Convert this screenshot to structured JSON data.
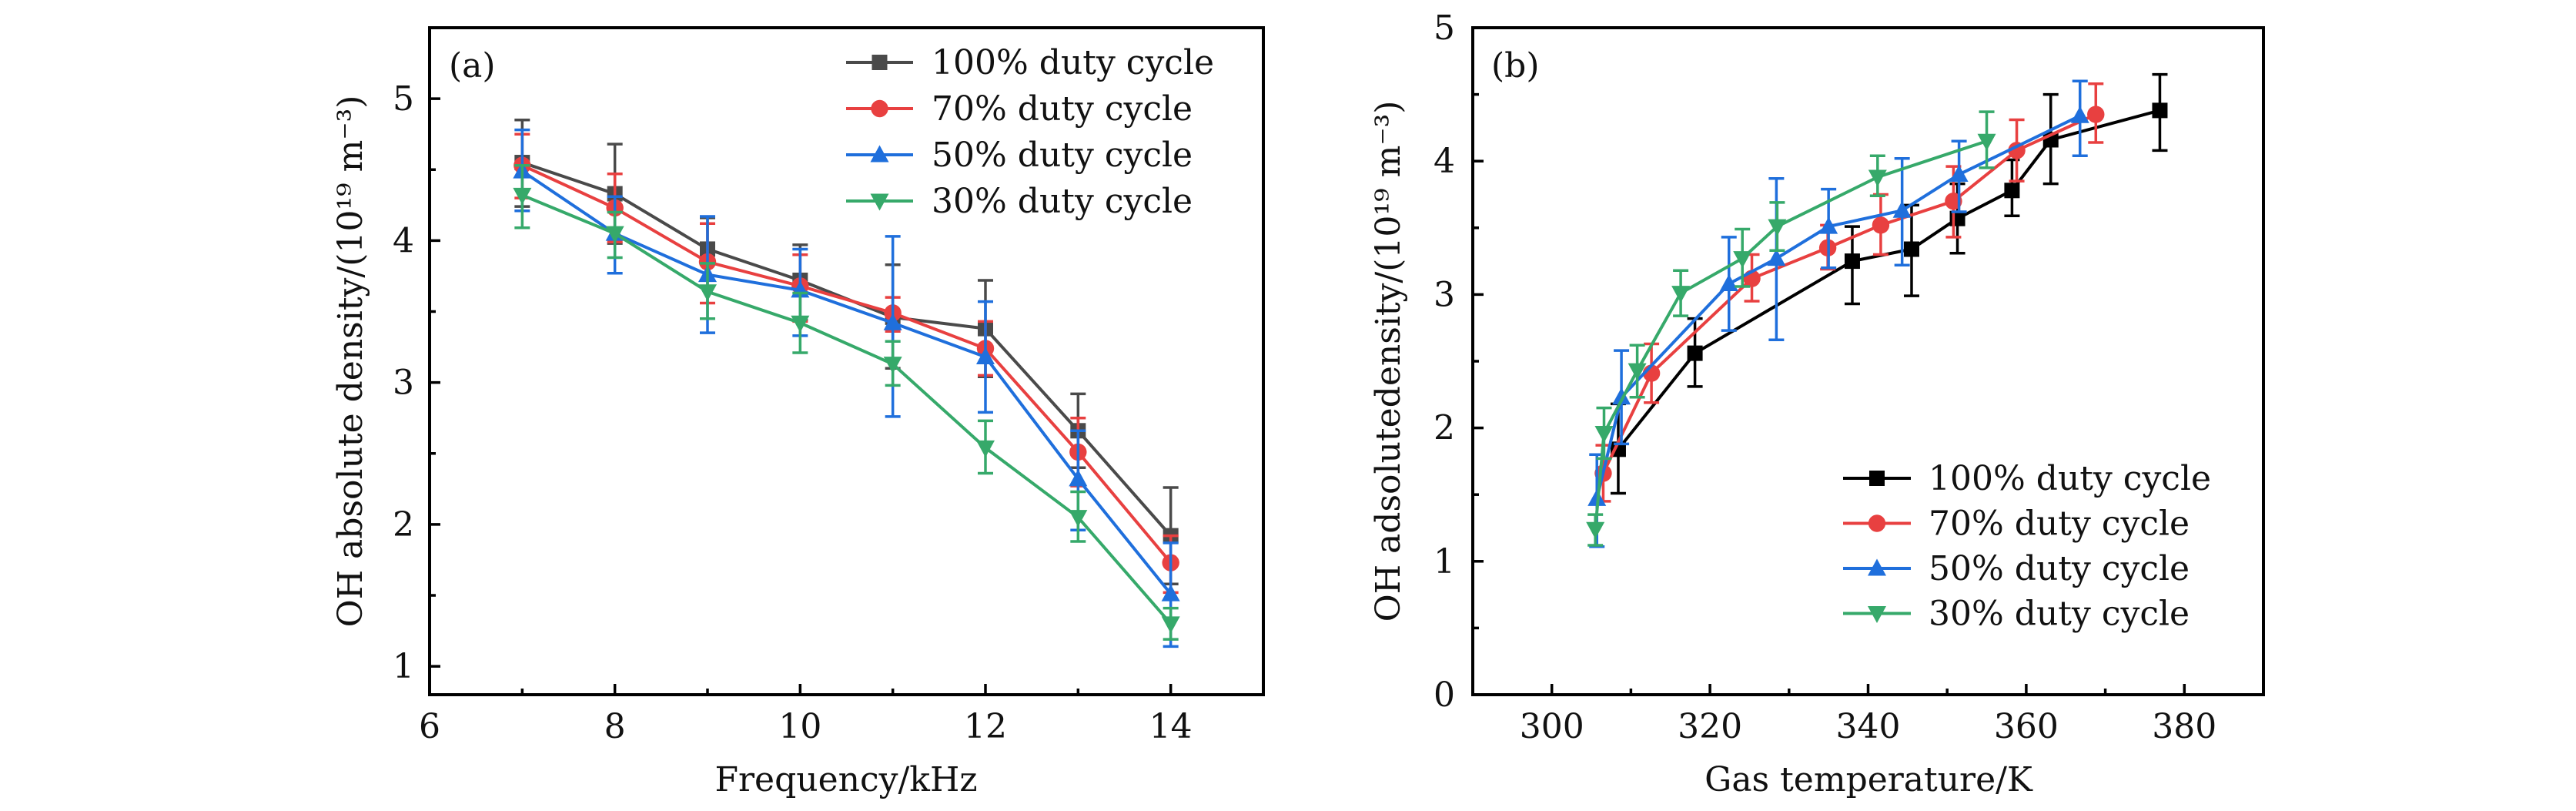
{
  "chart_data": [
    {
      "type": "line",
      "panel_tag": "(a)",
      "title": "",
      "xlabel": "Frequency/kHz",
      "ylabel": "OH absolute density/(10¹⁹ m⁻³)",
      "xlim": [
        6,
        15
      ],
      "ylim": [
        0.8,
        5.5
      ],
      "xticks": [
        6,
        8,
        10,
        12,
        14
      ],
      "xticks_minor": [
        7,
        9,
        11,
        13
      ],
      "yticks": [
        1,
        2,
        3,
        4,
        5
      ],
      "yticks_minor": [
        1.5,
        2.5,
        3.5,
        4.5
      ],
      "grid": false,
      "legend_position": "top-right",
      "series": [
        {
          "name": "100% duty cycle",
          "color": "#4a4a4a",
          "marker": "square",
          "x": [
            7,
            8,
            9,
            10,
            11,
            12,
            13,
            14
          ],
          "y": [
            4.55,
            4.33,
            3.94,
            3.72,
            3.46,
            3.38,
            2.66,
            1.92
          ],
          "err_high": [
            4.85,
            4.68,
            4.16,
            3.97,
            3.83,
            3.72,
            2.92,
            2.26
          ],
          "err_low": [
            4.24,
            3.98,
            3.72,
            3.44,
            3.1,
            3.04,
            2.4,
            1.58
          ]
        },
        {
          "name": "70% duty cycle",
          "color": "#e84040",
          "marker": "circle",
          "x": [
            7,
            8,
            9,
            10,
            11,
            12,
            13,
            14
          ],
          "y": [
            4.53,
            4.23,
            3.85,
            3.68,
            3.49,
            3.24,
            2.51,
            1.73
          ],
          "err_high": [
            4.75,
            4.47,
            4.12,
            3.9,
            3.6,
            3.43,
            2.75,
            1.92
          ],
          "err_low": [
            4.3,
            3.99,
            3.56,
            3.43,
            3.36,
            3.05,
            2.27,
            1.52
          ]
        },
        {
          "name": "50% duty cycle",
          "color": "#1f6fdc",
          "marker": "triangle-up",
          "x": [
            7,
            8,
            9,
            10,
            11,
            12,
            13,
            14
          ],
          "y": [
            4.49,
            4.05,
            3.76,
            3.65,
            3.42,
            3.18,
            2.32,
            1.51
          ],
          "err_high": [
            4.78,
            4.31,
            4.17,
            3.94,
            4.03,
            3.57,
            2.66,
            1.87
          ],
          "err_low": [
            4.21,
            3.77,
            3.35,
            3.33,
            2.76,
            2.79,
            1.96,
            1.14
          ]
        },
        {
          "name": "30% duty cycle",
          "color": "#36a96a",
          "marker": "triangle-down",
          "x": [
            7,
            8,
            9,
            10,
            11,
            12,
            13,
            14
          ],
          "y": [
            4.32,
            4.05,
            3.64,
            3.42,
            3.13,
            2.54,
            2.05,
            1.3
          ],
          "err_high": [
            4.53,
            4.2,
            3.84,
            3.63,
            3.29,
            2.73,
            2.23,
            1.41
          ],
          "err_low": [
            4.09,
            3.88,
            3.45,
            3.21,
            2.98,
            2.36,
            1.88,
            1.19
          ]
        }
      ]
    },
    {
      "type": "line",
      "panel_tag": "(b)",
      "title": "",
      "xlabel": "Gas temperature/K",
      "ylabel": "OH adsolutedensity/(10¹⁹ m⁻³)",
      "xlim": [
        290,
        390
      ],
      "ylim": [
        0,
        5
      ],
      "xticks": [
        300,
        320,
        340,
        360,
        380
      ],
      "xticks_minor": [
        310,
        330,
        350,
        370
      ],
      "yticks": [
        0,
        1,
        2,
        3,
        4,
        5
      ],
      "yticks_minor": [
        0.5,
        1.5,
        2.5,
        3.5,
        4.5
      ],
      "grid": false,
      "legend_position": "bottom-right",
      "series": [
        {
          "name": "100% duty cycle",
          "color": "#000000",
          "marker": "square",
          "x": [
            308.4,
            318.1,
            338.0,
            345.5,
            351.3,
            358.2,
            363.1,
            376.9
          ],
          "y": [
            1.84,
            2.56,
            3.25,
            3.34,
            3.57,
            3.78,
            4.16,
            4.38
          ],
          "err_high": [
            2.18,
            2.82,
            3.51,
            3.67,
            3.83,
            4.01,
            4.5,
            4.65
          ],
          "err_low": [
            1.51,
            2.31,
            2.93,
            2.99,
            3.31,
            3.59,
            3.83,
            4.08
          ]
        },
        {
          "name": "70% duty cycle",
          "color": "#e84040",
          "marker": "circle",
          "x": [
            306.5,
            312.6,
            325.3,
            334.9,
            341.6,
            350.8,
            358.8,
            368.8
          ],
          "y": [
            1.66,
            2.41,
            3.12,
            3.35,
            3.52,
            3.7,
            4.08,
            4.35
          ],
          "err_high": [
            1.87,
            2.63,
            3.3,
            3.52,
            3.75,
            3.96,
            4.31,
            4.58
          ],
          "err_low": [
            1.45,
            2.19,
            2.95,
            3.19,
            3.3,
            3.43,
            3.85,
            4.14
          ]
        },
        {
          "name": "50% duty cycle",
          "color": "#1f6fdc",
          "marker": "triangle-up",
          "x": [
            305.7,
            308.8,
            322.4,
            328.4,
            335.0,
            344.3,
            351.5,
            366.8
          ],
          "y": [
            1.47,
            2.23,
            3.08,
            3.27,
            3.51,
            3.63,
            3.9,
            4.34
          ],
          "err_high": [
            1.8,
            2.58,
            3.43,
            3.87,
            3.79,
            4.02,
            4.15,
            4.6
          ],
          "err_low": [
            1.11,
            1.88,
            2.73,
            2.66,
            3.2,
            3.22,
            3.62,
            4.04
          ]
        },
        {
          "name": "30% duty cycle",
          "color": "#36a96a",
          "marker": "triangle-down",
          "x": [
            305.5,
            306.6,
            310.8,
            316.3,
            324.1,
            328.5,
            341.2,
            355.0
          ],
          "y": [
            1.24,
            1.96,
            2.43,
            3.01,
            3.27,
            3.51,
            3.88,
            4.15
          ],
          "err_high": [
            1.35,
            2.15,
            2.62,
            3.18,
            3.49,
            3.69,
            4.04,
            4.37
          ],
          "err_low": [
            1.12,
            1.77,
            2.23,
            2.84,
            3.06,
            3.33,
            3.74,
            3.95
          ]
        }
      ]
    }
  ]
}
